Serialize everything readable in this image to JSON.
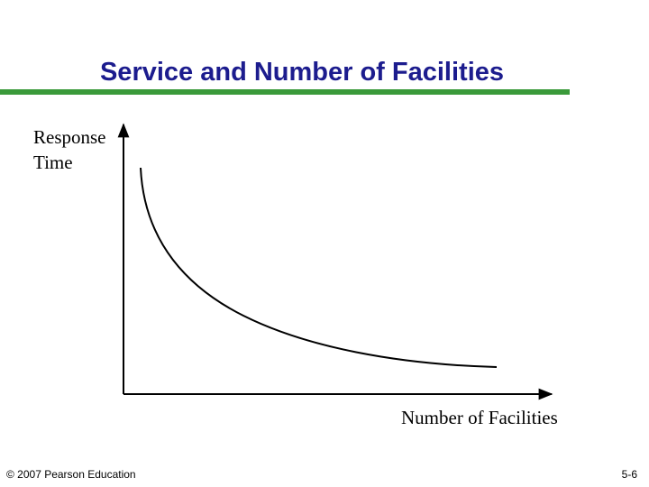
{
  "slide": {
    "title": "Service and Number of Facilities",
    "diagram": {
      "y_axis_label": [
        "Response",
        "Time"
      ],
      "x_axis_label": "Number of Facilities"
    },
    "footer": {
      "copyright": "© 2007 Pearson Education",
      "page": "5-6"
    }
  }
}
